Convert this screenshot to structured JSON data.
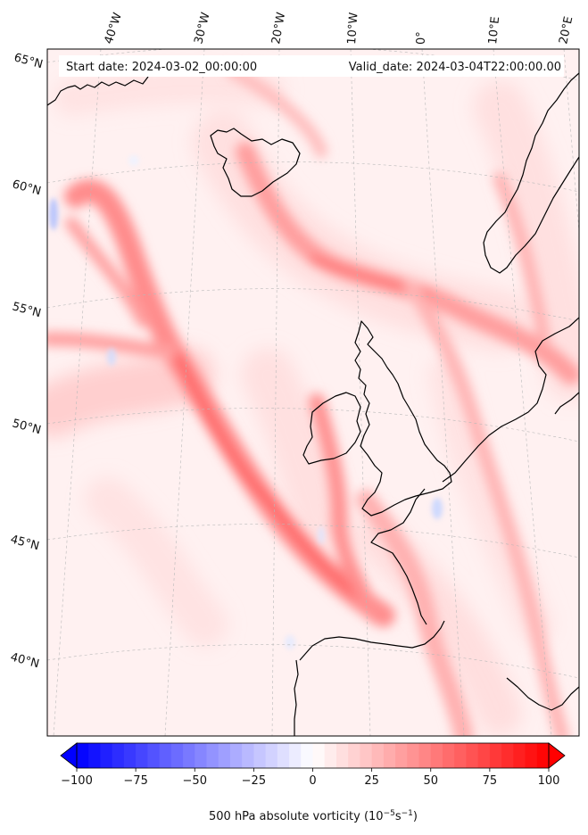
{
  "map": {
    "header": {
      "start_date": "Start date: 2024-03-02_00:00:00",
      "valid_date": "Valid_date: 2024-03-04T22:00:00.00"
    },
    "longitude_labels": [
      "40°W",
      "30°W",
      "20°W",
      "10°W",
      "0°",
      "10°E",
      "20°E"
    ],
    "latitude_labels": [
      "65°N",
      "60°N",
      "55°N",
      "50°N",
      "45°N",
      "40°N"
    ],
    "colors": {
      "coast": "#000000",
      "background": "#fff1f1",
      "gridline": "#b0b0b0",
      "max_positive": "#ff0000",
      "max_negative": "#0000ff"
    }
  },
  "colorbar": {
    "ticks": [
      "−100",
      "−75",
      "−50",
      "−25",
      "0",
      "25",
      "50",
      "75",
      "100"
    ],
    "min": -100,
    "max": 100,
    "label_main": "500 hPa absolute vorticity (10",
    "label_sup1": "−5",
    "label_mid": "s",
    "label_sup2": "−1",
    "label_end": ")"
  }
}
